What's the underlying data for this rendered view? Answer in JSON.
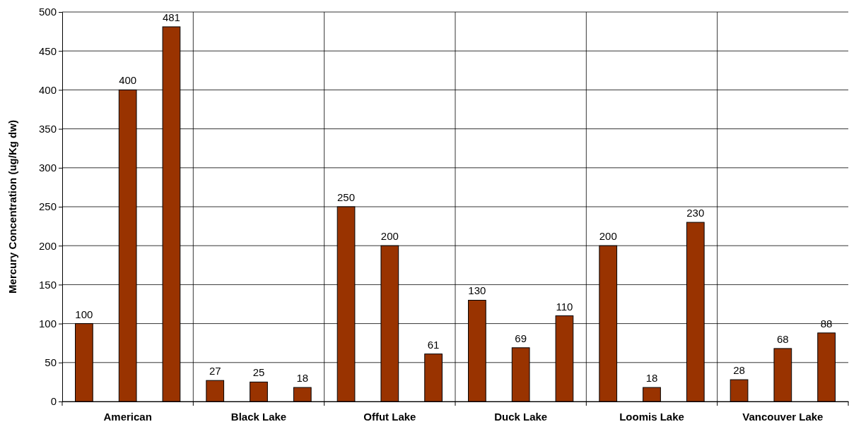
{
  "chart_data": {
    "type": "bar",
    "ylabel": "Mercury Concentration (ug/Kg dw)",
    "categories": [
      "American",
      "Black Lake",
      "Offut Lake",
      "Duck Lake",
      "Loomis Lake",
      "Vancouver Lake"
    ],
    "series": [
      {
        "color": "#993300",
        "values": [
          100,
          27,
          250,
          130,
          200,
          28
        ]
      },
      {
        "color": "#993300",
        "values": [
          400,
          25,
          200,
          69,
          18,
          68
        ]
      },
      {
        "color": "#993300",
        "values": [
          481,
          18,
          61,
          110,
          230,
          88
        ]
      }
    ],
    "ylim": [
      0,
      500
    ],
    "yticks": [
      0,
      50,
      100,
      150,
      200,
      250,
      300,
      350,
      400,
      450,
      500
    ],
    "grid": true,
    "data_labels": true
  }
}
